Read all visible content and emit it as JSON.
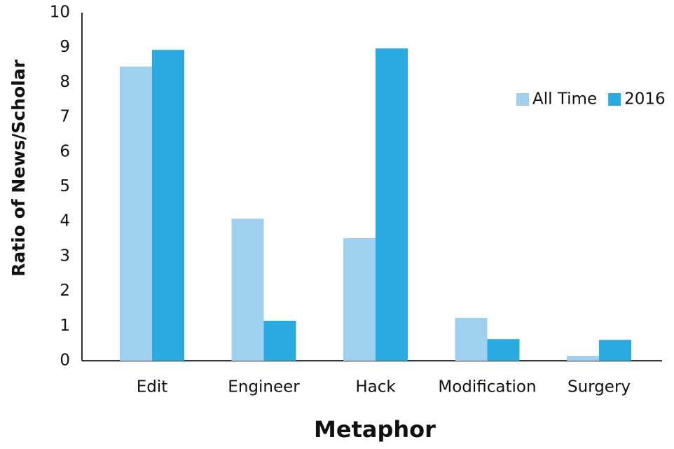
{
  "chart_data": {
    "type": "bar",
    "x_label": "Metaphor",
    "y_label": "Ratio of News/Scholar",
    "categories": [
      "Edit",
      "Engineer",
      "Hack",
      "Modification",
      "Surgery"
    ],
    "series": [
      {
        "name": "All Time",
        "color": "#9fd0ef",
        "values": [
          8.45,
          4.08,
          3.52,
          1.23,
          0.14
        ]
      },
      {
        "name": "2016",
        "color": "#29abe2",
        "values": [
          8.93,
          1.15,
          8.97,
          0.62,
          0.6
        ]
      }
    ],
    "ylim": [
      0,
      10
    ],
    "yticks": [
      0,
      1,
      2,
      3,
      4,
      5,
      6,
      7,
      8,
      9,
      10
    ],
    "grid": false,
    "legend": "right"
  }
}
